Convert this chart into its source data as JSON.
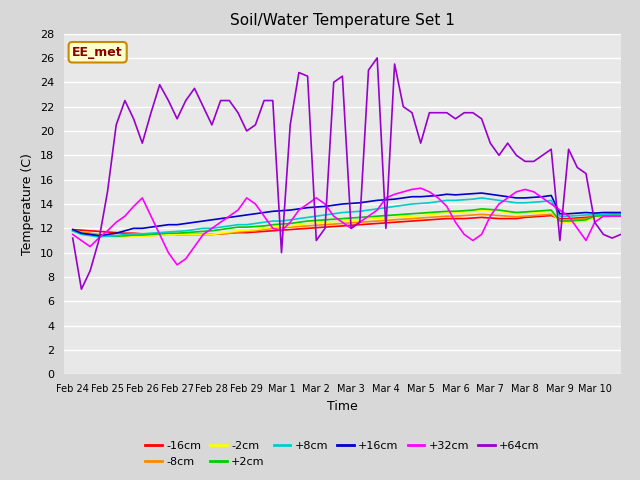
{
  "title": "Soil/Water Temperature Set 1",
  "xlabel": "Time",
  "ylabel": "Temperature (C)",
  "ylim": [
    0,
    28
  ],
  "yticks": [
    0,
    2,
    4,
    6,
    8,
    10,
    12,
    14,
    16,
    18,
    20,
    22,
    24,
    26,
    28
  ],
  "annotation_text": "EE_met",
  "annotation_bg": "#ffffcc",
  "annotation_border": "#cc8800",
  "fig_bg": "#d8d8d8",
  "plot_bg": "#e8e8e8",
  "legend_entries": [
    "-16cm",
    "-8cm",
    "-2cm",
    "+2cm",
    "+8cm",
    "+16cm",
    "+32cm",
    "+64cm"
  ],
  "legend_colors": [
    "#ff0000",
    "#ff8800",
    "#ffff00",
    "#00cc00",
    "#00cccc",
    "#0000cc",
    "#ff00ff",
    "#9900cc"
  ],
  "xtick_labels": [
    "Feb 24",
    "Feb 25",
    "Feb 26",
    "Feb 27",
    "Feb 28",
    "Feb 29",
    "Mar 1",
    "Mar 2",
    "Mar 3",
    "Mar 4",
    "Mar 5",
    "Mar 6",
    "Mar 7",
    "Mar 8",
    "Mar 9",
    "Mar 10"
  ],
  "n_days": 16,
  "pts_per_day": 4,
  "series_minus16": [
    11.9,
    11.85,
    11.8,
    11.75,
    11.7,
    11.65,
    11.6,
    11.6,
    11.55,
    11.55,
    11.55,
    11.55,
    11.5,
    11.5,
    11.5,
    11.5,
    11.5,
    11.55,
    11.6,
    11.65,
    11.65,
    11.7,
    11.75,
    11.8,
    11.85,
    11.9,
    11.95,
    12.0,
    12.05,
    12.1,
    12.15,
    12.2,
    12.25,
    12.3,
    12.35,
    12.4,
    12.45,
    12.5,
    12.55,
    12.6,
    12.65,
    12.7,
    12.75,
    12.8,
    12.8,
    12.8,
    12.85,
    12.9,
    12.85,
    12.8,
    12.8,
    12.8,
    12.9,
    12.95,
    13.0,
    13.05,
    12.8,
    12.8,
    12.85,
    12.9,
    12.95,
    13.0,
    13.0,
    13.0
  ],
  "series_minus8": [
    11.8,
    11.7,
    11.6,
    11.5,
    11.45,
    11.4,
    11.35,
    11.4,
    11.4,
    11.4,
    11.45,
    11.5,
    11.5,
    11.5,
    11.5,
    11.5,
    11.5,
    11.55,
    11.6,
    11.7,
    11.75,
    11.8,
    11.9,
    12.0,
    12.05,
    12.1,
    12.15,
    12.2,
    12.25,
    12.3,
    12.35,
    12.4,
    12.45,
    12.5,
    12.55,
    12.6,
    12.65,
    12.7,
    12.75,
    12.8,
    12.85,
    12.9,
    12.95,
    13.0,
    13.0,
    13.05,
    13.1,
    13.15,
    13.1,
    13.05,
    13.0,
    12.95,
    13.0,
    13.05,
    13.1,
    13.15,
    12.7,
    12.7,
    12.75,
    12.8,
    12.9,
    12.95,
    13.0,
    13.0
  ],
  "series_minus2": [
    11.8,
    11.6,
    11.5,
    11.4,
    11.35,
    11.3,
    11.25,
    11.3,
    11.35,
    11.4,
    11.45,
    11.5,
    11.5,
    11.5,
    11.5,
    11.5,
    11.5,
    11.6,
    11.7,
    11.8,
    11.85,
    11.9,
    12.0,
    12.1,
    12.15,
    12.2,
    12.3,
    12.4,
    12.45,
    12.5,
    12.55,
    12.6,
    12.65,
    12.7,
    12.75,
    12.8,
    12.85,
    12.9,
    12.95,
    13.0,
    13.05,
    13.1,
    13.2,
    13.3,
    13.3,
    13.35,
    13.4,
    13.5,
    13.45,
    13.4,
    13.3,
    13.2,
    13.25,
    13.3,
    13.35,
    13.4,
    12.5,
    12.5,
    12.55,
    12.6,
    12.9,
    12.95,
    13.0,
    13.0
  ],
  "series_plus2": [
    11.8,
    11.6,
    11.5,
    11.4,
    11.35,
    11.35,
    11.4,
    11.45,
    11.45,
    11.5,
    11.55,
    11.6,
    11.6,
    11.65,
    11.7,
    11.75,
    11.8,
    11.9,
    12.0,
    12.1,
    12.1,
    12.15,
    12.2,
    12.3,
    12.35,
    12.4,
    12.5,
    12.6,
    12.65,
    12.7,
    12.75,
    12.8,
    12.85,
    12.9,
    12.95,
    13.0,
    13.05,
    13.1,
    13.15,
    13.2,
    13.25,
    13.3,
    13.35,
    13.4,
    13.4,
    13.45,
    13.5,
    13.6,
    13.55,
    13.5,
    13.4,
    13.3,
    13.35,
    13.4,
    13.45,
    13.5,
    12.6,
    12.6,
    12.65,
    12.7,
    13.0,
    13.05,
    13.1,
    13.1
  ],
  "series_plus8": [
    11.8,
    11.5,
    11.4,
    11.3,
    11.35,
    11.4,
    11.5,
    11.55,
    11.55,
    11.6,
    11.65,
    11.7,
    11.75,
    11.8,
    11.9,
    12.0,
    12.0,
    12.1,
    12.2,
    12.3,
    12.3,
    12.4,
    12.5,
    12.6,
    12.6,
    12.7,
    12.8,
    12.9,
    13.0,
    13.1,
    13.2,
    13.3,
    13.35,
    13.4,
    13.5,
    13.6,
    13.7,
    13.8,
    13.9,
    14.0,
    14.05,
    14.1,
    14.2,
    14.3,
    14.3,
    14.35,
    14.4,
    14.5,
    14.4,
    14.3,
    14.2,
    14.1,
    14.1,
    14.15,
    14.2,
    14.3,
    13.0,
    13.0,
    13.05,
    13.1,
    13.1,
    13.15,
    13.2,
    13.2
  ],
  "series_plus16": [
    11.9,
    11.6,
    11.5,
    11.4,
    11.5,
    11.6,
    11.8,
    12.0,
    12.0,
    12.1,
    12.2,
    12.3,
    12.3,
    12.4,
    12.5,
    12.6,
    12.7,
    12.8,
    12.9,
    13.0,
    13.1,
    13.2,
    13.3,
    13.4,
    13.45,
    13.5,
    13.6,
    13.7,
    13.75,
    13.8,
    13.9,
    14.0,
    14.05,
    14.1,
    14.2,
    14.3,
    14.35,
    14.4,
    14.5,
    14.6,
    14.6,
    14.65,
    14.7,
    14.8,
    14.75,
    14.8,
    14.85,
    14.9,
    14.8,
    14.7,
    14.6,
    14.5,
    14.5,
    14.55,
    14.6,
    14.7,
    13.2,
    13.2,
    13.25,
    13.3,
    13.25,
    13.3,
    13.3,
    13.3
  ],
  "series_plus32": [
    11.5,
    11.0,
    10.5,
    11.2,
    11.8,
    12.5,
    13.0,
    13.8,
    14.5,
    13.0,
    11.5,
    10.0,
    9.0,
    9.5,
    10.5,
    11.5,
    12.0,
    12.5,
    13.0,
    13.5,
    14.5,
    14.0,
    13.0,
    12.0,
    11.8,
    12.5,
    13.5,
    14.0,
    14.5,
    14.0,
    13.0,
    12.5,
    12.0,
    12.5,
    13.0,
    13.5,
    14.5,
    14.8,
    15.0,
    15.2,
    15.3,
    15.0,
    14.5,
    13.8,
    12.5,
    11.5,
    11.0,
    11.5,
    13.0,
    14.0,
    14.5,
    15.0,
    15.2,
    15.0,
    14.5,
    14.0,
    13.5,
    13.0,
    12.0,
    11.0,
    12.5,
    13.0,
    13.0,
    13.0
  ],
  "series_plus64": [
    11.2,
    7.0,
    8.5,
    11.0,
    15.0,
    20.5,
    22.5,
    21.0,
    19.0,
    21.5,
    23.8,
    22.5,
    21.0,
    22.5,
    23.5,
    22.0,
    20.5,
    22.5,
    22.5,
    21.5,
    20.0,
    20.5,
    22.5,
    22.5,
    10.0,
    20.5,
    24.8,
    24.5,
    11.0,
    12.0,
    24.0,
    24.5,
    12.0,
    12.5,
    25.0,
    26.0,
    12.0,
    25.5,
    22.0,
    21.5,
    19.0,
    21.5,
    21.5,
    21.5,
    21.0,
    21.5,
    21.5,
    21.0,
    19.0,
    18.0,
    19.0,
    18.0,
    17.5,
    17.5,
    18.0,
    18.5,
    11.0,
    18.5,
    17.0,
    16.5,
    12.5,
    11.5,
    11.2,
    11.5
  ]
}
